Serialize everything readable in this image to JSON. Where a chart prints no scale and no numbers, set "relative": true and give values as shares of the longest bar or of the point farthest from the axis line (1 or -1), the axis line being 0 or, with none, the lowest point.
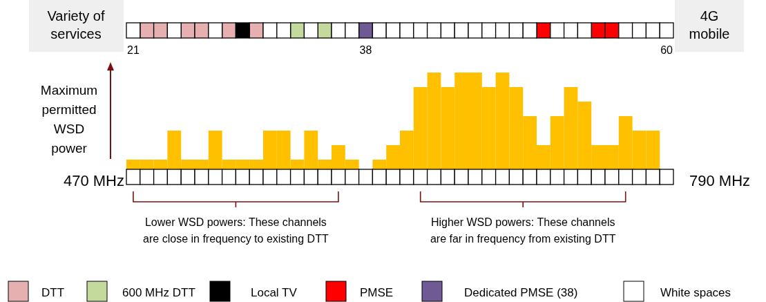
{
  "chart_data": [
    {
      "type": "bar",
      "relative": true,
      "stacked": true,
      "categories": [
        "21",
        null,
        null,
        null,
        null,
        null,
        null,
        null,
        null,
        null,
        null,
        null,
        null,
        null,
        null,
        null,
        null,
        "38",
        null,
        null,
        null,
        null,
        null,
        null,
        null,
        null,
        null,
        null,
        null,
        null,
        null,
        null,
        null,
        null,
        null,
        null,
        null,
        null,
        null,
        "60"
      ],
      "series": [
        {
          "name": "DTT",
          "color": "#e6b0b0",
          "values": [
            null,
            1,
            1,
            null,
            1,
            1,
            null,
            1,
            null,
            1,
            null,
            null,
            null,
            null,
            null,
            null,
            null,
            null,
            null,
            null,
            null,
            null,
            null,
            null,
            null,
            null,
            null,
            null,
            null,
            null,
            null,
            null,
            null,
            null,
            null,
            null,
            null,
            null,
            null,
            null
          ]
        },
        {
          "name": "600 MHz DTT",
          "color": "#c4d99c",
          "values": [
            null,
            null,
            null,
            null,
            null,
            null,
            null,
            null,
            null,
            null,
            null,
            null,
            1,
            null,
            1,
            null,
            null,
            null,
            null,
            null,
            null,
            null,
            null,
            null,
            null,
            null,
            null,
            null,
            null,
            null,
            null,
            null,
            null,
            null,
            null,
            null,
            null,
            null,
            null,
            null
          ]
        },
        {
          "name": "Local TV",
          "color": "#000000",
          "values": [
            null,
            null,
            null,
            null,
            null,
            null,
            null,
            null,
            1,
            null,
            null,
            null,
            null,
            null,
            null,
            null,
            null,
            null,
            null,
            null,
            null,
            null,
            null,
            null,
            null,
            null,
            null,
            null,
            null,
            null,
            null,
            null,
            null,
            null,
            null,
            null,
            null,
            null,
            null,
            null
          ]
        },
        {
          "name": "PMSE",
          "color": "#ff0000",
          "values": [
            null,
            null,
            null,
            null,
            null,
            null,
            null,
            null,
            null,
            null,
            null,
            null,
            null,
            null,
            null,
            null,
            null,
            null,
            null,
            null,
            null,
            null,
            null,
            null,
            null,
            null,
            null,
            null,
            null,
            null,
            1,
            null,
            null,
            null,
            1,
            1,
            null,
            null,
            null,
            null
          ]
        },
        {
          "name": "Dedicated PMSE (38)",
          "color": "#6f5a95",
          "values": [
            null,
            null,
            null,
            null,
            null,
            null,
            null,
            null,
            null,
            null,
            null,
            null,
            null,
            null,
            null,
            null,
            null,
            1,
            null,
            null,
            null,
            null,
            null,
            null,
            null,
            null,
            null,
            null,
            null,
            null,
            null,
            null,
            null,
            null,
            null,
            null,
            null,
            null,
            null,
            null
          ]
        },
        {
          "name": "White spaces",
          "color": "#ffffff",
          "values": [
            1,
            null,
            null,
            1,
            null,
            null,
            1,
            null,
            null,
            null,
            1,
            1,
            null,
            1,
            null,
            1,
            1,
            null,
            1,
            1,
            1,
            1,
            1,
            1,
            1,
            1,
            1,
            1,
            1,
            1,
            null,
            1,
            1,
            1,
            null,
            null,
            1,
            1,
            1,
            1
          ]
        }
      ],
      "legend": "bottom",
      "annotations": [
        "Variety of services",
        "4G mobile"
      ]
    },
    {
      "type": "bar",
      "relative": true,
      "categories": [
        null,
        null,
        null,
        null,
        null,
        null,
        null,
        null,
        null,
        null,
        null,
        null,
        null,
        null,
        null,
        null,
        null,
        null,
        null,
        null,
        null,
        null,
        null,
        null,
        null,
        null,
        null,
        null,
        null,
        null,
        null,
        null,
        null,
        null,
        null,
        null,
        null,
        null,
        null,
        null
      ],
      "values": [
        0.1,
        0.1,
        0.1,
        0.4,
        0.1,
        0.1,
        0.4,
        0.1,
        0.1,
        0.1,
        0.4,
        0.4,
        0.1,
        0.4,
        0.1,
        0.25,
        0.1,
        0,
        0.1,
        0.25,
        0.4,
        0.85,
        1,
        0.85,
        1,
        1,
        0.85,
        1,
        0.85,
        0.55,
        0.25,
        0.55,
        0.85,
        0.7,
        0.25,
        0.25,
        0.55,
        0.4,
        0.4,
        0
      ],
      "color": "#ffc000",
      "ylabel": "Maximum permitted WSD power",
      "annotations": [
        "470 MHz",
        "790 MHz",
        "Lower WSD powers: These channels are close in frequency to existing DTT",
        "Higher WSD powers: These channels are far in frequency from existing DTT"
      ]
    }
  ]
}
